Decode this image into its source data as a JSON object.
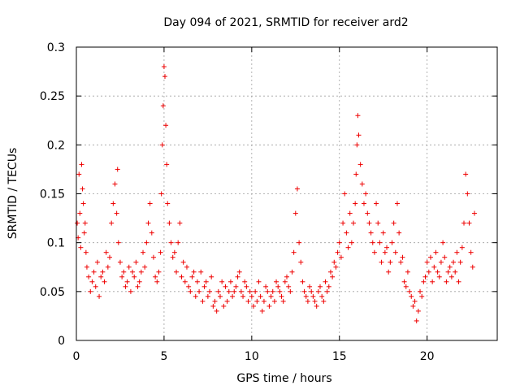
{
  "chart_data": {
    "type": "scatter",
    "title": "Day 094 of 2021, SRMTID for receiver ard2",
    "xlabel": "GPS time / hours",
    "ylabel": "SRMTID / TECUs",
    "xlim": [
      0,
      24
    ],
    "ylim": [
      0,
      0.3
    ],
    "xticks": [
      0,
      5,
      10,
      15,
      20
    ],
    "xtick_labels": [
      "0",
      "5",
      "10",
      "15",
      "20"
    ],
    "yticks": [
      0,
      0.05,
      0.1,
      0.15,
      0.2,
      0.25,
      0.3
    ],
    "ytick_labels": [
      "0",
      "0.05",
      "0.1",
      "0.15",
      "0.2",
      "0.25",
      "0.3"
    ],
    "grid": true,
    "marker": "+",
    "color": "#ee0000",
    "series": [
      {
        "name": "ard2",
        "x": [
          0.05,
          0.1,
          0.15,
          0.2,
          0.25,
          0.3,
          0.35,
          0.4,
          0.45,
          0.5,
          0.55,
          0.6,
          0.7,
          0.8,
          0.9,
          1.0,
          1.1,
          1.2,
          1.3,
          1.4,
          1.5,
          1.6,
          1.7,
          1.8,
          1.9,
          2.0,
          2.1,
          2.2,
          2.3,
          2.35,
          2.4,
          2.5,
          2.6,
          2.7,
          2.8,
          2.9,
          3.0,
          3.1,
          3.2,
          3.3,
          3.4,
          3.5,
          3.6,
          3.7,
          3.8,
          3.9,
          4.0,
          4.1,
          4.2,
          4.3,
          4.4,
          4.5,
          4.6,
          4.7,
          4.8,
          4.85,
          4.9,
          4.95,
          5.0,
          5.05,
          5.1,
          5.15,
          5.2,
          5.3,
          5.4,
          5.5,
          5.6,
          5.7,
          5.8,
          5.9,
          6.0,
          6.1,
          6.2,
          6.3,
          6.4,
          6.5,
          6.6,
          6.7,
          6.8,
          6.9,
          7.0,
          7.1,
          7.2,
          7.3,
          7.4,
          7.5,
          7.6,
          7.7,
          7.8,
          7.9,
          8.0,
          8.1,
          8.2,
          8.3,
          8.4,
          8.5,
          8.6,
          8.7,
          8.8,
          8.9,
          9.0,
          9.1,
          9.2,
          9.3,
          9.4,
          9.5,
          9.6,
          9.7,
          9.8,
          9.9,
          10.0,
          10.1,
          10.2,
          10.3,
          10.4,
          10.5,
          10.6,
          10.7,
          10.8,
          10.9,
          11.0,
          11.1,
          11.2,
          11.3,
          11.4,
          11.5,
          11.6,
          11.7,
          11.8,
          11.9,
          12.0,
          12.1,
          12.2,
          12.3,
          12.4,
          12.5,
          12.6,
          12.7,
          12.8,
          12.9,
          13.0,
          13.1,
          13.2,
          13.3,
          13.4,
          13.5,
          13.6,
          13.7,
          13.8,
          13.9,
          14.0,
          14.1,
          14.2,
          14.3,
          14.4,
          14.5,
          14.6,
          14.7,
          14.8,
          14.9,
          15.0,
          15.1,
          15.2,
          15.3,
          15.4,
          15.5,
          15.6,
          15.7,
          15.8,
          15.9,
          15.95,
          16.0,
          16.05,
          16.1,
          16.2,
          16.3,
          16.4,
          16.5,
          16.6,
          16.7,
          16.8,
          16.9,
          17.0,
          17.1,
          17.2,
          17.3,
          17.4,
          17.5,
          17.6,
          17.7,
          17.8,
          17.9,
          18.0,
          18.1,
          18.2,
          18.3,
          18.4,
          18.5,
          18.6,
          18.7,
          18.8,
          18.9,
          19.0,
          19.1,
          19.2,
          19.3,
          19.4,
          19.5,
          19.6,
          19.7,
          19.8,
          19.9,
          20.0,
          20.1,
          20.2,
          20.3,
          20.4,
          20.5,
          20.6,
          20.7,
          20.8,
          20.9,
          21.0,
          21.1,
          21.2,
          21.3,
          21.4,
          21.5,
          21.6,
          21.7,
          21.8,
          21.9,
          22.0,
          22.1,
          22.2,
          22.3,
          22.4,
          22.5,
          22.6,
          22.7
        ],
        "y": [
          0.12,
          0.105,
          0.17,
          0.13,
          0.095,
          0.18,
          0.155,
          0.14,
          0.11,
          0.12,
          0.09,
          0.075,
          0.065,
          0.05,
          0.06,
          0.07,
          0.055,
          0.08,
          0.045,
          0.065,
          0.07,
          0.06,
          0.09,
          0.075,
          0.085,
          0.12,
          0.14,
          0.16,
          0.13,
          0.175,
          0.1,
          0.08,
          0.065,
          0.07,
          0.055,
          0.06,
          0.075,
          0.05,
          0.07,
          0.065,
          0.08,
          0.055,
          0.06,
          0.07,
          0.09,
          0.075,
          0.1,
          0.12,
          0.14,
          0.11,
          0.085,
          0.065,
          0.06,
          0.07,
          0.09,
          0.15,
          0.2,
          0.24,
          0.28,
          0.27,
          0.22,
          0.18,
          0.14,
          0.12,
          0.1,
          0.085,
          0.09,
          0.07,
          0.1,
          0.12,
          0.065,
          0.08,
          0.06,
          0.075,
          0.055,
          0.05,
          0.065,
          0.07,
          0.045,
          0.06,
          0.05,
          0.07,
          0.04,
          0.055,
          0.06,
          0.045,
          0.05,
          0.065,
          0.035,
          0.04,
          0.03,
          0.05,
          0.045,
          0.06,
          0.035,
          0.055,
          0.04,
          0.05,
          0.06,
          0.045,
          0.05,
          0.055,
          0.065,
          0.07,
          0.05,
          0.045,
          0.06,
          0.055,
          0.04,
          0.05,
          0.045,
          0.035,
          0.05,
          0.04,
          0.06,
          0.045,
          0.03,
          0.04,
          0.055,
          0.05,
          0.035,
          0.045,
          0.05,
          0.04,
          0.06,
          0.055,
          0.05,
          0.045,
          0.04,
          0.06,
          0.065,
          0.055,
          0.05,
          0.07,
          0.09,
          0.13,
          0.155,
          0.1,
          0.08,
          0.06,
          0.05,
          0.045,
          0.04,
          0.055,
          0.05,
          0.045,
          0.04,
          0.035,
          0.05,
          0.055,
          0.045,
          0.04,
          0.06,
          0.05,
          0.055,
          0.07,
          0.065,
          0.08,
          0.075,
          0.09,
          0.1,
          0.085,
          0.12,
          0.15,
          0.11,
          0.095,
          0.13,
          0.1,
          0.12,
          0.14,
          0.17,
          0.2,
          0.23,
          0.21,
          0.18,
          0.16,
          0.14,
          0.15,
          0.13,
          0.12,
          0.11,
          0.1,
          0.09,
          0.14,
          0.12,
          0.1,
          0.08,
          0.11,
          0.09,
          0.095,
          0.07,
          0.08,
          0.1,
          0.12,
          0.09,
          0.14,
          0.11,
          0.08,
          0.085,
          0.06,
          0.055,
          0.07,
          0.05,
          0.045,
          0.035,
          0.04,
          0.02,
          0.03,
          0.05,
          0.045,
          0.06,
          0.065,
          0.08,
          0.07,
          0.085,
          0.06,
          0.075,
          0.09,
          0.07,
          0.065,
          0.08,
          0.1,
          0.085,
          0.06,
          0.07,
          0.075,
          0.065,
          0.08,
          0.07,
          0.09,
          0.06,
          0.08,
          0.095,
          0.12,
          0.17,
          0.15,
          0.12,
          0.09,
          0.075,
          0.13
        ]
      }
    ]
  }
}
